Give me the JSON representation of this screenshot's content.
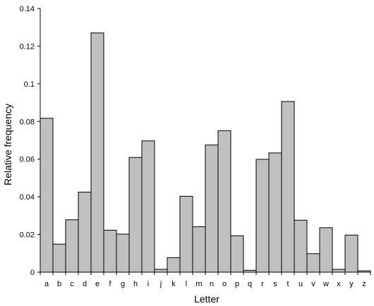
{
  "chart_data": {
    "type": "bar",
    "xlabel": "Letter",
    "ylabel": "Relative frequency",
    "ylim": [
      0,
      0.14
    ],
    "yticks": [
      0,
      0.02,
      0.04,
      0.06,
      0.08,
      0.1,
      0.12,
      0.14
    ],
    "ytick_labels": [
      "0",
      "0.02",
      "0.04",
      "0.06",
      "0.08",
      "0.1",
      "0.12",
      "0.14"
    ],
    "categories": [
      "a",
      "b",
      "c",
      "d",
      "e",
      "f",
      "g",
      "h",
      "i",
      "j",
      "k",
      "l",
      "m",
      "n",
      "o",
      "p",
      "q",
      "r",
      "s",
      "t",
      "u",
      "v",
      "w",
      "x",
      "y",
      "z"
    ],
    "values": [
      0.0817,
      0.0149,
      0.0278,
      0.0425,
      0.127,
      0.0223,
      0.0202,
      0.0609,
      0.0697,
      0.0015,
      0.0077,
      0.0403,
      0.0241,
      0.0675,
      0.0751,
      0.0193,
      0.001,
      0.0599,
      0.0633,
      0.0906,
      0.0276,
      0.0098,
      0.0236,
      0.0015,
      0.0197,
      0.0007
    ],
    "bar_color": "#c0c0c0",
    "bar_edge_color": "#000000",
    "grid": false,
    "legend": "none"
  }
}
